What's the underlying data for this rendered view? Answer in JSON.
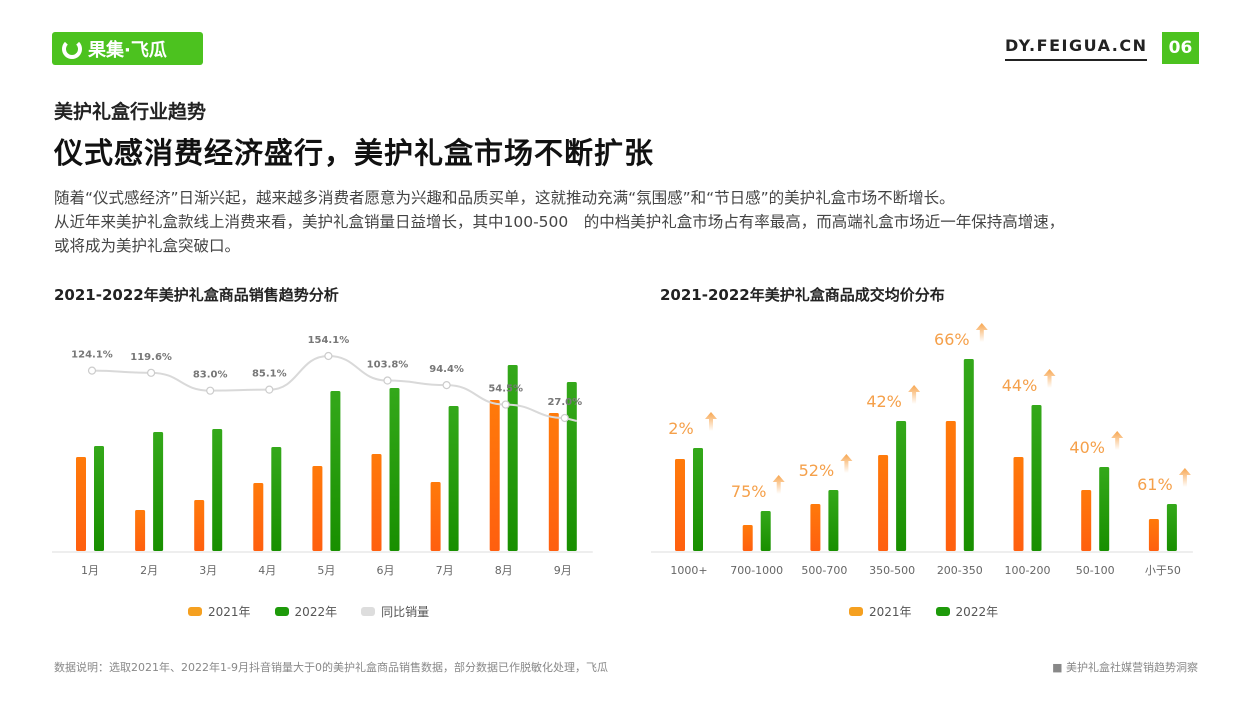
{
  "header": {
    "logo": "果集·飞瓜",
    "site": "DY.FEIGUA.CN",
    "page": "06"
  },
  "subtitle": "美护礼盒行业趋势",
  "title": "仪式感消费经济盛行，美护礼盒市场不断扩张",
  "description": [
    "随着“仪式感经济”日渐兴起，越来越多消费者愿意为兴趣和品质买单，这就推动充满“氛围感”和“节日感”的美护礼盒市场不断增长。",
    "从近年来美护礼盒款线上消费来看，美护礼盒销量日益增长，其中100-500　的中档美护礼盒市场占有率最高，而高端礼盒市场近一年保持高增速，",
    "或将成为美护礼盒突破口。"
  ],
  "footer": {
    "note": "数据说明：选取2021年、2022年1-9月抖音销量大于0的美护礼盒商品销售数据，部分数据已作脱敏化处理，飞瓜",
    "source": "美护礼盒社媒营销趋势洞察"
  },
  "colors": {
    "brand": "#4cc21f",
    "y2021": "#ff6a0a",
    "y2022": "#1e9a0a",
    "line": "#d9d9d9",
    "growth": "#f5a04a"
  },
  "chart_data": [
    {
      "type": "bar",
      "title": "2021-2022年美护礼盒商品销售趋势分析",
      "categories": [
        "1月",
        "2月",
        "3月",
        "4月",
        "5月",
        "6月",
        "7月",
        "8月",
        "9月"
      ],
      "series": [
        {
          "name": "2021年",
          "values": [
            94,
            41,
            51,
            68,
            85,
            97,
            69,
            151,
            138
          ]
        },
        {
          "name": "2022年",
          "values": [
            105,
            119,
            122,
            104,
            160,
            163,
            145,
            186,
            169
          ]
        },
        {
          "name": "同比销量",
          "type": "line",
          "values": [
            124.1,
            119.6,
            83.0,
            85.1,
            154.1,
            103.8,
            94.4,
            54.5,
            27.0
          ],
          "labels": [
            "124.1%",
            "119.6%",
            "83.0%",
            "85.1%",
            "154.1%",
            "103.8%",
            "94.4%",
            "54.5%",
            "27.0%"
          ]
        }
      ],
      "ylabel": "relative sales (no axis shown)",
      "legend": "bottom"
    },
    {
      "type": "bar",
      "title": "2021-2022年美护礼盒商品成交均价分布",
      "categories": [
        "1000+",
        "700-1000",
        "500-700",
        "350-500",
        "200-350",
        "100-200",
        "50-100",
        "小于50"
      ],
      "series": [
        {
          "name": "2021年",
          "values": [
            92,
            26,
            47,
            96,
            130,
            94,
            61,
            32
          ]
        },
        {
          "name": "2022年",
          "values": [
            103,
            40,
            61,
            130,
            192,
            146,
            84,
            47
          ]
        }
      ],
      "growth_labels": [
        "2%",
        "75%",
        "52%",
        "42%",
        "66%",
        "44%",
        "40%",
        "61%"
      ],
      "legend": "bottom"
    }
  ]
}
